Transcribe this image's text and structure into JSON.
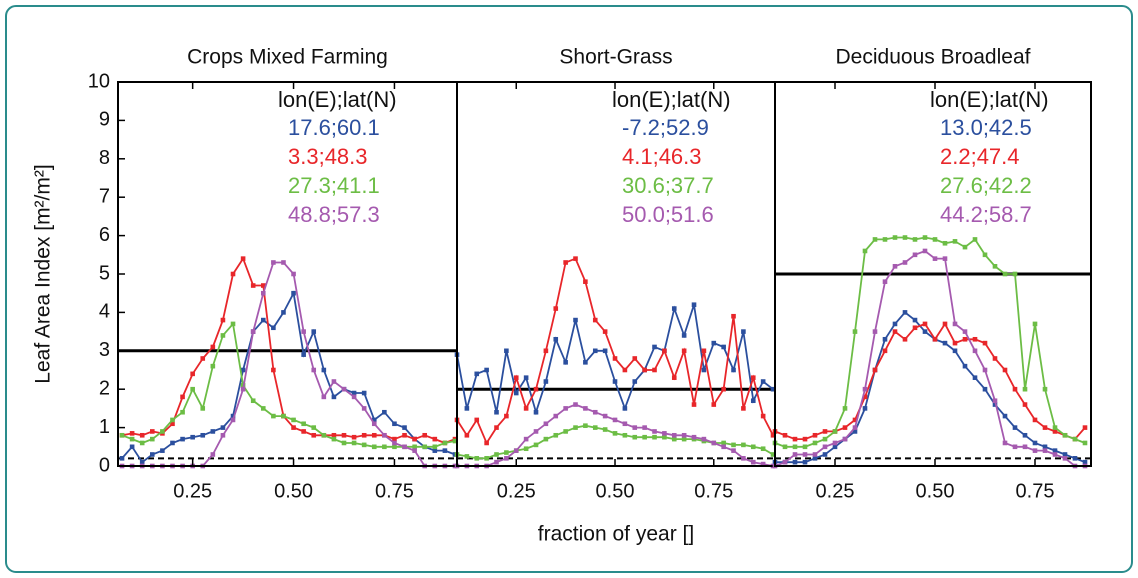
{
  "chart_data": [
    {
      "type": "line",
      "title": "Crops Mixed Farming",
      "y_label": "Leaf Area Index [m²/m²]",
      "xlim": [
        0.065,
        0.905
      ],
      "ylim": [
        0,
        10
      ],
      "xticks": [
        0.25,
        {
          "value": 0.5,
          "label": "0.50"
        },
        0.75
      ],
      "yticks": [
        0,
        1,
        2,
        3,
        4,
        5,
        6,
        7,
        8,
        9,
        10
      ],
      "legend_title": "lon(E);lat(N)",
      "hlines": [
        3
      ],
      "dashed_hlines": [
        0.2
      ],
      "x": [
        0.075,
        0.1,
        0.125,
        0.15,
        0.175,
        0.2,
        0.225,
        0.25,
        0.275,
        0.3,
        0.325,
        0.35,
        0.375,
        0.4,
        0.425,
        0.45,
        0.475,
        0.5,
        0.525,
        0.55,
        0.575,
        0.6,
        0.625,
        0.65,
        0.675,
        0.7,
        0.725,
        0.75,
        0.775,
        0.8,
        0.825,
        0.85,
        0.875,
        0.9
      ],
      "series": [
        {
          "name": "17.6;60.1",
          "color": "#2b4f9e",
          "values": [
            0.2,
            0.5,
            0.1,
            0.3,
            0.4,
            0.6,
            0.7,
            0.75,
            0.8,
            0.9,
            1.0,
            1.3,
            2.5,
            3.5,
            3.8,
            3.6,
            4.0,
            4.5,
            2.9,
            3.5,
            2.5,
            1.8,
            2.0,
            1.9,
            1.9,
            1.2,
            1.4,
            1.1,
            1.0,
            0.7,
            0.5,
            0.4,
            0.4,
            0.3
          ]
        },
        {
          "name": "3.3;48.3",
          "color": "#e8262a",
          "values": [
            0.8,
            0.85,
            0.8,
            0.9,
            0.85,
            1.1,
            1.8,
            2.4,
            2.8,
            3.1,
            3.8,
            5.0,
            5.4,
            4.7,
            4.7,
            2.5,
            1.3,
            1.0,
            0.9,
            0.8,
            0.8,
            0.8,
            0.8,
            0.75,
            0.8,
            0.8,
            0.8,
            0.7,
            0.8,
            0.7,
            0.8,
            0.7,
            0.6,
            0.7
          ]
        },
        {
          "name": "27.3;41.1",
          "color": "#6cbd45",
          "values": [
            0.8,
            0.7,
            0.6,
            0.7,
            0.9,
            1.2,
            1.4,
            2.0,
            1.5,
            2.6,
            3.4,
            3.7,
            2.1,
            1.7,
            1.5,
            1.3,
            1.3,
            1.2,
            1.1,
            1.0,
            0.8,
            0.7,
            0.6,
            0.6,
            0.55,
            0.5,
            0.5,
            0.5,
            0.5,
            0.5,
            0.5,
            0.5,
            0.6,
            0.65
          ]
        },
        {
          "name": "48.8;57.3",
          "color": "#a55aaf",
          "values": [
            0,
            0,
            0,
            0,
            0,
            0,
            0,
            0,
            0,
            0.3,
            0.8,
            1.2,
            2.0,
            3.5,
            4.5,
            5.3,
            5.3,
            5.0,
            3.5,
            2.5,
            1.8,
            2.2,
            2.0,
            1.8,
            1.5,
            1.1,
            0.8,
            0.6,
            0.5,
            0.4,
            0,
            0,
            0,
            0
          ]
        }
      ]
    },
    {
      "type": "line",
      "title": "Short-Grass",
      "x_label": "fraction of year []",
      "xlim": [
        0.1,
        0.905
      ],
      "ylim": [
        0,
        10
      ],
      "xticks": [
        0.25,
        {
          "value": 0.5,
          "label": "0.50"
        },
        0.75
      ],
      "legend_title": "lon(E);lat(N)",
      "hlines": [
        2
      ],
      "dashed_hlines": [
        0.2
      ],
      "x": [
        0.1,
        0.125,
        0.15,
        0.175,
        0.2,
        0.225,
        0.25,
        0.275,
        0.3,
        0.325,
        0.35,
        0.375,
        0.4,
        0.425,
        0.45,
        0.475,
        0.5,
        0.525,
        0.55,
        0.575,
        0.6,
        0.625,
        0.65,
        0.675,
        0.7,
        0.725,
        0.75,
        0.775,
        0.8,
        0.825,
        0.85,
        0.875,
        0.9
      ],
      "series": [
        {
          "name": "-7.2;52.9",
          "color": "#2b4f9e",
          "values": [
            2.9,
            1.5,
            2.4,
            2.5,
            1.4,
            3.0,
            1.9,
            2.3,
            1.4,
            2.2,
            3.3,
            2.7,
            3.8,
            2.7,
            3.0,
            3.0,
            2.2,
            1.5,
            2.2,
            2.5,
            3.1,
            3.0,
            4.1,
            3.4,
            4.2,
            2.5,
            3.2,
            3.1,
            2.5,
            3.5,
            1.7,
            2.2,
            2.0
          ]
        },
        {
          "name": "4.1;46.3",
          "color": "#e8262a",
          "values": [
            1.2,
            0.8,
            1.2,
            0.6,
            1.0,
            1.3,
            2.3,
            1.5,
            2.0,
            3.0,
            4.1,
            5.3,
            5.4,
            4.8,
            3.8,
            3.5,
            2.8,
            2.5,
            2.8,
            2.5,
            2.5,
            3.0,
            2.3,
            3.0,
            1.6,
            3.0,
            1.6,
            2.0,
            3.9,
            1.5,
            2.3,
            1.3,
            0.8
          ]
        },
        {
          "name": "30.6;37.7",
          "color": "#6cbd45",
          "values": [
            0.3,
            0.25,
            0.2,
            0.2,
            0.3,
            0.35,
            0.4,
            0.45,
            0.55,
            0.7,
            0.8,
            0.9,
            1.0,
            1.05,
            1.0,
            0.95,
            0.85,
            0.8,
            0.75,
            0.75,
            0.75,
            0.75,
            0.7,
            0.7,
            0.7,
            0.65,
            0.6,
            0.6,
            0.55,
            0.55,
            0.5,
            0.45,
            0.3
          ]
        },
        {
          "name": "50.0;51.6",
          "color": "#a55aaf",
          "values": [
            0,
            0,
            0,
            0,
            0.1,
            0.2,
            0.4,
            0.7,
            0.9,
            1.1,
            1.3,
            1.5,
            1.6,
            1.5,
            1.4,
            1.3,
            1.2,
            1.1,
            1.0,
            1.0,
            0.9,
            0.85,
            0.8,
            0.8,
            0.75,
            0.7,
            0.6,
            0.5,
            0.4,
            0.2,
            0.1,
            0.05,
            0
          ]
        }
      ]
    },
    {
      "type": "line",
      "title": "Deciduous Broadleaf",
      "xlim": [
        0.1,
        0.89
      ],
      "ylim": [
        0,
        10
      ],
      "xticks": [
        0.25,
        {
          "value": 0.5,
          "label": "0.50"
        },
        0.75
      ],
      "legend_title": "lon(E);lat(N)",
      "hlines": [
        5
      ],
      "dashed_hlines": [
        0.2
      ],
      "x": [
        0.1,
        0.125,
        0.15,
        0.175,
        0.2,
        0.225,
        0.25,
        0.275,
        0.3,
        0.325,
        0.35,
        0.375,
        0.4,
        0.425,
        0.45,
        0.475,
        0.5,
        0.525,
        0.55,
        0.575,
        0.6,
        0.625,
        0.65,
        0.675,
        0.7,
        0.725,
        0.75,
        0.775,
        0.8,
        0.825,
        0.85,
        0.875
      ],
      "series": [
        {
          "name": "13.0;42.5",
          "color": "#2b4f9e",
          "values": [
            0.1,
            0.1,
            0.1,
            0.1,
            0.2,
            0.3,
            0.5,
            0.7,
            0.9,
            1.5,
            2.5,
            3.3,
            3.7,
            4.0,
            3.8,
            3.5,
            3.3,
            3.2,
            3.0,
            2.6,
            2.3,
            2.0,
            1.6,
            1.3,
            1.0,
            0.8,
            0.6,
            0.5,
            0.4,
            0.3,
            0.2,
            0.1
          ]
        },
        {
          "name": "2.2;47.4",
          "color": "#e8262a",
          "values": [
            0.9,
            0.8,
            0.7,
            0.7,
            0.8,
            0.9,
            0.9,
            1.0,
            1.2,
            1.8,
            2.5,
            3.0,
            3.5,
            3.3,
            3.6,
            3.7,
            3.3,
            3.7,
            3.2,
            3.3,
            3.3,
            3.2,
            2.8,
            2.5,
            2.0,
            1.6,
            1.2,
            1.0,
            0.9,
            0.8,
            0.7,
            1.0
          ]
        },
        {
          "name": "27.6;42.2",
          "color": "#6cbd45",
          "values": [
            0.6,
            0.5,
            0.5,
            0.5,
            0.6,
            0.7,
            0.9,
            1.5,
            3.5,
            5.6,
            5.9,
            5.9,
            5.95,
            5.95,
            5.9,
            5.95,
            5.9,
            5.8,
            5.85,
            5.7,
            5.9,
            5.5,
            5.2,
            5.0,
            5.0,
            2.0,
            3.7,
            2.0,
            1.0,
            0.8,
            0.7,
            0.6
          ]
        },
        {
          "name": "44.2;58.7",
          "color": "#a55aaf",
          "values": [
            0,
            0.1,
            0.3,
            0.3,
            0.3,
            0.5,
            0.6,
            0.7,
            1.0,
            2.0,
            3.5,
            4.8,
            5.2,
            5.3,
            5.5,
            5.6,
            5.4,
            5.4,
            3.7,
            3.5,
            3.0,
            2.5,
            1.7,
            0.6,
            0.5,
            0.5,
            0.4,
            0.4,
            0.3,
            0.2,
            0,
            0
          ]
        }
      ]
    }
  ]
}
